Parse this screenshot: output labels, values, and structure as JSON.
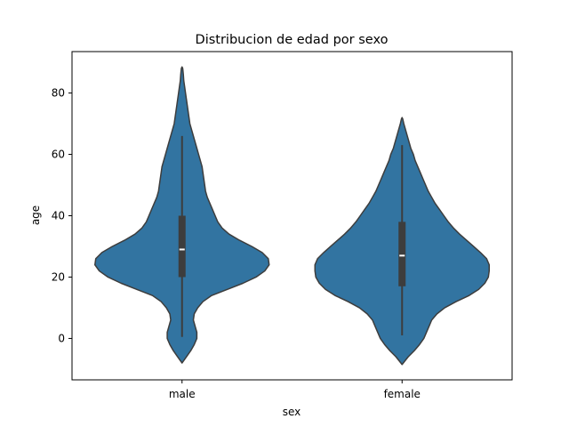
{
  "chart_data": {
    "type": "violin",
    "title": "Distribucion de edad por sexo",
    "xlabel": "sex",
    "ylabel": "age",
    "categories": [
      "male",
      "female"
    ],
    "ylim": [
      -13.5,
      93.5
    ],
    "yticks": [
      0,
      20,
      40,
      60,
      80
    ],
    "color": "#3274a1",
    "edge_color": "#3d3d3d",
    "grid": false,
    "violins": [
      {
        "category": "male",
        "density_profile": [
          [
            -8,
            0.0
          ],
          [
            -6,
            0.05
          ],
          [
            -4,
            0.1
          ],
          [
            -2,
            0.14
          ],
          [
            0,
            0.17
          ],
          [
            2,
            0.17
          ],
          [
            4,
            0.15
          ],
          [
            6,
            0.13
          ],
          [
            8,
            0.14
          ],
          [
            10,
            0.18
          ],
          [
            12,
            0.24
          ],
          [
            14,
            0.34
          ],
          [
            16,
            0.52
          ],
          [
            18,
            0.7
          ],
          [
            20,
            0.85
          ],
          [
            22,
            0.95
          ],
          [
            24,
            1.0
          ],
          [
            26,
            0.99
          ],
          [
            28,
            0.92
          ],
          [
            30,
            0.8
          ],
          [
            32,
            0.66
          ],
          [
            34,
            0.54
          ],
          [
            36,
            0.46
          ],
          [
            38,
            0.41
          ],
          [
            40,
            0.38
          ],
          [
            42,
            0.35
          ],
          [
            44,
            0.32
          ],
          [
            46,
            0.29
          ],
          [
            48,
            0.27
          ],
          [
            50,
            0.26
          ],
          [
            52,
            0.25
          ],
          [
            54,
            0.24
          ],
          [
            56,
            0.23
          ],
          [
            58,
            0.21
          ],
          [
            60,
            0.19
          ],
          [
            62,
            0.17
          ],
          [
            64,
            0.15
          ],
          [
            66,
            0.13
          ],
          [
            68,
            0.11
          ],
          [
            70,
            0.09
          ],
          [
            72,
            0.08
          ],
          [
            74,
            0.07
          ],
          [
            76,
            0.06
          ],
          [
            78,
            0.05
          ],
          [
            80,
            0.04
          ],
          [
            82,
            0.03
          ],
          [
            84,
            0.02
          ],
          [
            86,
            0.015
          ],
          [
            88,
            0.008
          ],
          [
            88.5,
            0.0
          ]
        ],
        "whisker_low": 0.5,
        "q1": 20,
        "median": 29,
        "q3": 40,
        "whisker_high": 66
      },
      {
        "category": "female",
        "density_profile": [
          [
            -8.5,
            0.0
          ],
          [
            -6,
            0.07
          ],
          [
            -4,
            0.14
          ],
          [
            -2,
            0.2
          ],
          [
            0,
            0.25
          ],
          [
            2,
            0.28
          ],
          [
            4,
            0.31
          ],
          [
            6,
            0.34
          ],
          [
            8,
            0.4
          ],
          [
            10,
            0.49
          ],
          [
            12,
            0.62
          ],
          [
            14,
            0.77
          ],
          [
            16,
            0.88
          ],
          [
            18,
            0.95
          ],
          [
            20,
            0.99
          ],
          [
            22,
            1.0
          ],
          [
            24,
            1.0
          ],
          [
            26,
            0.97
          ],
          [
            28,
            0.9
          ],
          [
            30,
            0.82
          ],
          [
            32,
            0.74
          ],
          [
            34,
            0.66
          ],
          [
            36,
            0.59
          ],
          [
            38,
            0.53
          ],
          [
            40,
            0.48
          ],
          [
            42,
            0.43
          ],
          [
            44,
            0.38
          ],
          [
            46,
            0.34
          ],
          [
            48,
            0.3
          ],
          [
            50,
            0.27
          ],
          [
            52,
            0.24
          ],
          [
            54,
            0.21
          ],
          [
            56,
            0.18
          ],
          [
            58,
            0.15
          ],
          [
            60,
            0.13
          ],
          [
            62,
            0.1
          ],
          [
            64,
            0.08
          ],
          [
            66,
            0.06
          ],
          [
            68,
            0.04
          ],
          [
            70,
            0.02
          ],
          [
            71.5,
            0.008
          ],
          [
            72,
            0.0
          ]
        ],
        "whisker_low": 1,
        "q1": 17,
        "median": 27,
        "q3": 38,
        "whisker_high": 63
      }
    ]
  }
}
